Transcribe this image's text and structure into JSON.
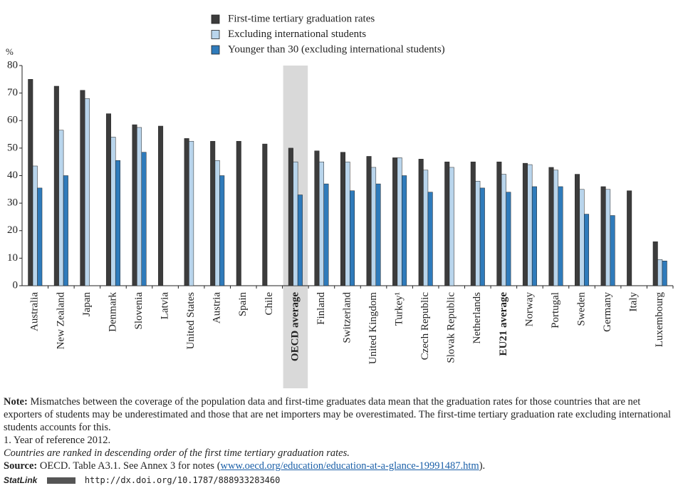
{
  "chart_data": {
    "type": "bar",
    "y_unit": "%",
    "categories": [
      "Australia",
      "New Zealand",
      "Japan",
      "Denmark",
      "Slovenia",
      "Latvia",
      "United States",
      "Austria",
      "Spain",
      "Chile",
      "OECD average",
      "Finland",
      "Switzerland",
      "United Kingdom",
      "Turkey¹",
      "Czech Republic",
      "Slovak Republic",
      "Netherlands",
      "EU21 average",
      "Norway",
      "Portugal",
      "Sweden",
      "Germany",
      "Italy",
      "Luxembourg"
    ],
    "series": [
      {
        "name": "First-time tertiary graduation rates",
        "color": "#3c3c3c",
        "values": [
          75,
          72.5,
          71,
          62.5,
          58.5,
          58,
          53.5,
          52.5,
          52.5,
          51.5,
          50,
          49,
          48.5,
          47,
          46.5,
          46,
          45,
          45,
          45,
          44.5,
          43,
          40.5,
          36,
          34.5,
          16
        ]
      },
      {
        "name": "Excluding international students",
        "color": "#b9d5ec",
        "values": [
          43.5,
          56.5,
          68,
          54,
          57.5,
          null,
          52.5,
          45.5,
          null,
          null,
          45,
          45,
          45,
          43,
          46.5,
          42,
          43,
          38,
          40.5,
          44,
          42,
          35,
          35,
          null,
          9.5
        ]
      },
      {
        "name": "Younger than 30 (excluding international students)",
        "color": "#2f7bbb",
        "values": [
          35.5,
          40,
          null,
          45.5,
          48.5,
          null,
          null,
          40,
          null,
          null,
          33,
          37,
          34.5,
          37,
          40,
          34,
          null,
          35.5,
          34,
          36,
          36,
          26,
          25.5,
          null,
          9
        ]
      }
    ],
    "ylim": [
      0,
      80
    ],
    "yticks": [
      0,
      10,
      20,
      30,
      40,
      50,
      60,
      70,
      80
    ],
    "grid": false,
    "legend": "top",
    "highlight": [
      10
    ],
    "bold": [
      10,
      18
    ]
  },
  "notes": {
    "note_label": "Note:",
    "note_text": "Mismatches between the coverage of the population data and first-time graduates data mean that the graduation rates for those countries that are net exporters of students may be underestimated and those that are net importers may be overestimated. The first-time tertiary graduation rate excluding international students accounts for this.",
    "footnote": "1. Year of reference 2012.",
    "ranking": "Countries are ranked in descending order of the first time tertiary graduation rates.",
    "source_label": "Source:",
    "source_text": "OECD. Table A3.1. See Annex 3 for notes (",
    "source_link": "www.oecd.org/education/education-at-a-glance-19991487.htm",
    "source_tail": ").",
    "statlink_label": "StatLink",
    "statlink_url": "http://dx.doi.org/10.1787/888933283460"
  }
}
